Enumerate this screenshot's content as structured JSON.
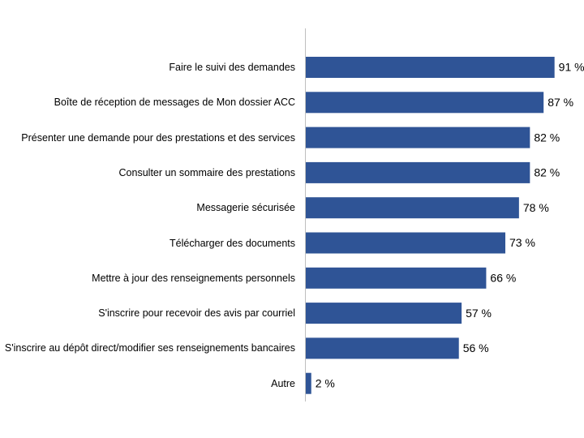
{
  "chart_data": {
    "type": "bar",
    "orientation": "horizontal",
    "color": "#2f5496",
    "categories": [
      "Faire le suivi des demandes",
      "Boîte de réception de messages de Mon dossier ACC",
      "Présenter une demande pour des prestations et des services",
      "Consulter un sommaire des prestations",
      "Messagerie sécurisée",
      "Télécharger des documents",
      "Mettre à jour des renseignements personnels",
      "S'inscrire pour recevoir des avis par courriel",
      "S'inscrire au dépôt direct/modifier ses renseignements bancaires",
      "Autre"
    ],
    "values": [
      91,
      87,
      82,
      82,
      78,
      73,
      66,
      57,
      56,
      2
    ],
    "value_labels": [
      "91 %",
      "87 %",
      "82 %",
      "82 %",
      "78 %",
      "73 %",
      "66 %",
      "57 %",
      "56 %",
      "2 %"
    ]
  }
}
